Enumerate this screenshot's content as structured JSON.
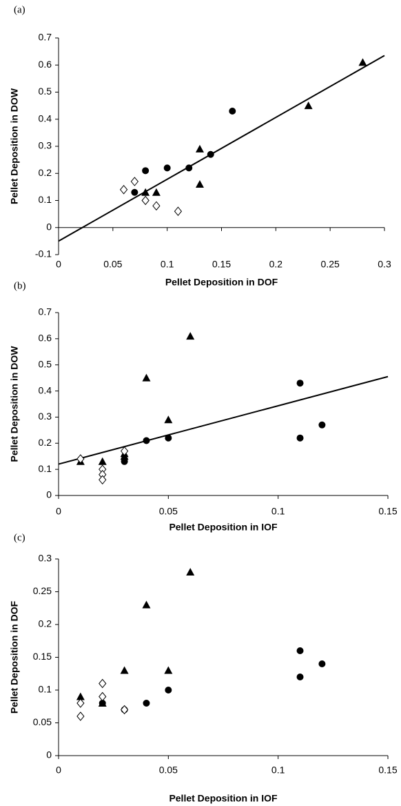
{
  "chart_data": [
    {
      "type": "scatter",
      "panel_label": "(a)",
      "xlabel": "Pellet Deposition in DOF",
      "ylabel": "Pellet Deposition in DOW",
      "xlim": [
        0,
        0.3
      ],
      "ylim": [
        -0.1,
        0.7
      ],
      "xticks": [
        0,
        0.05,
        0.1,
        0.15,
        0.2,
        0.25,
        0.3
      ],
      "yticks": [
        -0.1,
        0,
        0.1,
        0.2,
        0.3,
        0.4,
        0.5,
        0.6,
        0.7
      ],
      "series": [
        {
          "marker": "circle",
          "color": "#000000",
          "x": [
            0.07,
            0.08,
            0.1,
            0.12,
            0.14,
            0.16
          ],
          "y": [
            0.13,
            0.21,
            0.22,
            0.22,
            0.27,
            0.43
          ]
        },
        {
          "marker": "triangle",
          "color": "#000000",
          "x": [
            0.08,
            0.09,
            0.13,
            0.13,
            0.23,
            0.28
          ],
          "y": [
            0.13,
            0.13,
            0.29,
            0.16,
            0.45,
            0.61
          ]
        },
        {
          "marker": "diamond",
          "color": "#000000",
          "x": [
            0.06,
            0.07,
            0.08,
            0.09,
            0.11
          ],
          "y": [
            0.14,
            0.17,
            0.1,
            0.08,
            0.06
          ]
        }
      ],
      "trendline": {
        "x": [
          0,
          0.3
        ],
        "y": [
          -0.05,
          0.635
        ]
      }
    },
    {
      "type": "scatter",
      "panel_label": "(b)",
      "xlabel": "Pellet Deposition in IOF",
      "ylabel": "Pellet Deposition in DOW",
      "xlim": [
        0,
        0.15
      ],
      "ylim": [
        0,
        0.7
      ],
      "xticks": [
        0,
        0.05,
        0.1,
        0.15
      ],
      "yticks": [
        0,
        0.1,
        0.2,
        0.3,
        0.4,
        0.5,
        0.6,
        0.7
      ],
      "series": [
        {
          "marker": "circle",
          "color": "#000000",
          "x": [
            0.03,
            0.04,
            0.05,
            0.11,
            0.11,
            0.12
          ],
          "y": [
            0.13,
            0.21,
            0.22,
            0.43,
            0.22,
            0.27
          ]
        },
        {
          "marker": "triangle",
          "color": "#000000",
          "x": [
            0.01,
            0.02,
            0.03,
            0.03,
            0.04,
            0.05,
            0.06
          ],
          "y": [
            0.13,
            0.13,
            0.15,
            0.16,
            0.45,
            0.29,
            0.61
          ]
        },
        {
          "marker": "diamond",
          "color": "#000000",
          "x": [
            0.01,
            0.02,
            0.02,
            0.02,
            0.03
          ],
          "y": [
            0.14,
            0.1,
            0.08,
            0.06,
            0.17
          ]
        }
      ],
      "trendline": {
        "x": [
          0,
          0.15
        ],
        "y": [
          0.12,
          0.455
        ]
      }
    },
    {
      "type": "scatter",
      "panel_label": "(c)",
      "xlabel": "Pellet Deposition in IOF",
      "ylabel": "Pellet Deposition in DOF",
      "xlim": [
        0,
        0.15
      ],
      "ylim": [
        0,
        0.3
      ],
      "xticks": [
        0,
        0.05,
        0.1,
        0.15
      ],
      "yticks": [
        0,
        0.05,
        0.1,
        0.15,
        0.2,
        0.25,
        0.3
      ],
      "series": [
        {
          "marker": "circle",
          "color": "#000000",
          "x": [
            0.02,
            0.03,
            0.04,
            0.05,
            0.11,
            0.11,
            0.12
          ],
          "y": [
            0.08,
            0.07,
            0.08,
            0.1,
            0.16,
            0.12,
            0.14
          ]
        },
        {
          "marker": "triangle",
          "color": "#000000",
          "x": [
            0.01,
            0.02,
            0.03,
            0.04,
            0.05,
            0.06
          ],
          "y": [
            0.09,
            0.08,
            0.13,
            0.23,
            0.13,
            0.28
          ]
        },
        {
          "marker": "diamond",
          "color": "#000000",
          "x": [
            0.01,
            0.01,
            0.02,
            0.02,
            0.03
          ],
          "y": [
            0.08,
            0.06,
            0.11,
            0.09,
            0.07
          ]
        }
      ]
    }
  ]
}
